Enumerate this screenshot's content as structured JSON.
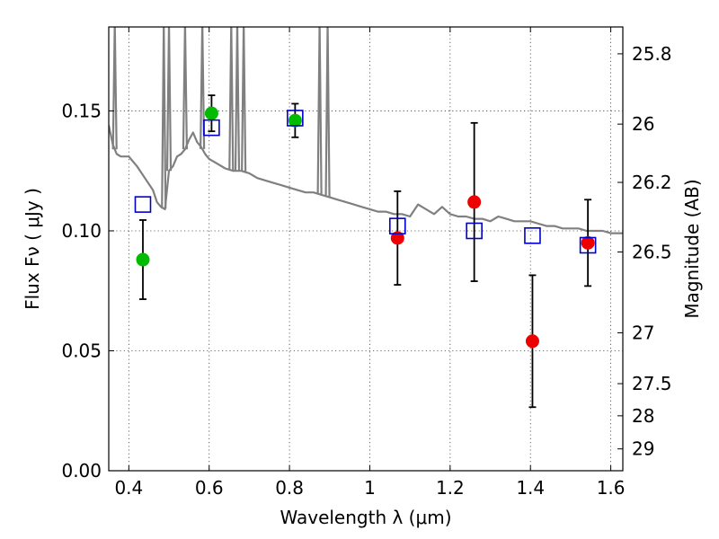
{
  "chart_data": {
    "type": "scatter",
    "title": "",
    "xlabel": "Wavelength  λ (μm)",
    "ylabel": "Flux  Fν  ( μJy )",
    "y2label": "Magnitude (AB)",
    "xlim": [
      0.35,
      1.63
    ],
    "ylim": [
      0.0,
      0.185
    ],
    "grid": true,
    "x_ticks": [
      0.4,
      0.6,
      0.8,
      1.0,
      1.2,
      1.4,
      1.6
    ],
    "x_tick_labels": [
      "0.4",
      "0.6",
      "0.8",
      "1",
      "1.2",
      "1.4",
      "1.6"
    ],
    "y_ticks": [
      0.0,
      0.05,
      0.1,
      0.15
    ],
    "y_tick_labels": [
      "0.00",
      "0.05",
      "0.10",
      "0.15"
    ],
    "y2_ticks": [
      {
        "label": "25.8",
        "flux": 0.1738
      },
      {
        "label": "26",
        "flux": 0.1445
      },
      {
        "label": "26.2",
        "flux": 0.1202
      },
      {
        "label": "26.5",
        "flux": 0.0912
      },
      {
        "label": "27",
        "flux": 0.0575
      },
      {
        "label": "27.5",
        "flux": 0.0363
      },
      {
        "label": "28",
        "flux": 0.0229
      },
      {
        "label": "29",
        "flux": 0.0091
      }
    ],
    "colors": {
      "model": "#808080",
      "green": "#00bb00",
      "red": "#ee0000",
      "square": "#0000cc",
      "errorbar": "#000000"
    },
    "model_spectrum": {
      "x": [
        0.35,
        0.36,
        0.37,
        0.38,
        0.4,
        0.42,
        0.44,
        0.46,
        0.47,
        0.48,
        0.49,
        0.5,
        0.51,
        0.52,
        0.53,
        0.54,
        0.55,
        0.56,
        0.57,
        0.58,
        0.59,
        0.6,
        0.62,
        0.64,
        0.66,
        0.68,
        0.7,
        0.72,
        0.74,
        0.76,
        0.78,
        0.8,
        0.82,
        0.84,
        0.86,
        0.88,
        0.9,
        0.92,
        0.94,
        0.96,
        0.98,
        1.0,
        1.02,
        1.04,
        1.06,
        1.08,
        1.1,
        1.12,
        1.14,
        1.16,
        1.18,
        1.2,
        1.22,
        1.24,
        1.26,
        1.28,
        1.3,
        1.32,
        1.34,
        1.36,
        1.38,
        1.4,
        1.42,
        1.44,
        1.46,
        1.48,
        1.5,
        1.52,
        1.54,
        1.56,
        1.58,
        1.6,
        1.63
      ],
      "y": [
        0.144,
        0.136,
        0.132,
        0.131,
        0.131,
        0.127,
        0.122,
        0.117,
        0.112,
        0.11,
        0.109,
        0.125,
        0.127,
        0.131,
        0.132,
        0.134,
        0.138,
        0.141,
        0.137,
        0.135,
        0.132,
        0.13,
        0.128,
        0.126,
        0.125,
        0.125,
        0.124,
        0.122,
        0.121,
        0.12,
        0.119,
        0.118,
        0.117,
        0.116,
        0.116,
        0.115,
        0.114,
        0.113,
        0.112,
        0.111,
        0.11,
        0.109,
        0.108,
        0.108,
        0.107,
        0.107,
        0.106,
        0.111,
        0.109,
        0.107,
        0.11,
        0.107,
        0.106,
        0.106,
        0.105,
        0.105,
        0.104,
        0.106,
        0.105,
        0.104,
        0.104,
        0.104,
        0.103,
        0.102,
        0.102,
        0.101,
        0.101,
        0.101,
        0.1,
        0.1,
        0.1,
        0.099,
        0.099
      ]
    },
    "emission_lines": [
      0.365,
      0.487,
      0.5,
      0.54,
      0.583,
      0.655,
      0.67,
      0.686,
      0.875,
      0.895
    ],
    "series": [
      {
        "marker": "circle",
        "color": "green",
        "points": [
          {
            "x": 0.435,
            "y": 0.088,
            "err": 0.0165
          },
          {
            "x": 0.606,
            "y": 0.149,
            "err": 0.0075
          },
          {
            "x": 0.814,
            "y": 0.146,
            "err": 0.007
          }
        ]
      },
      {
        "marker": "circle",
        "color": "red",
        "points": [
          {
            "x": 1.069,
            "y": 0.097,
            "err": 0.0195
          },
          {
            "x": 1.26,
            "y": 0.112,
            "err": 0.033
          },
          {
            "x": 1.405,
            "y": 0.054,
            "err": 0.0275
          },
          {
            "x": 1.543,
            "y": 0.095,
            "err": 0.018
          }
        ]
      },
      {
        "marker": "square",
        "color": "square",
        "points": [
          {
            "x": 0.435,
            "y": 0.111
          },
          {
            "x": 0.606,
            "y": 0.143
          },
          {
            "x": 0.814,
            "y": 0.147
          },
          {
            "x": 1.069,
            "y": 0.102
          },
          {
            "x": 1.26,
            "y": 0.1
          },
          {
            "x": 1.405,
            "y": 0.098
          },
          {
            "x": 1.543,
            "y": 0.094
          }
        ]
      }
    ]
  }
}
